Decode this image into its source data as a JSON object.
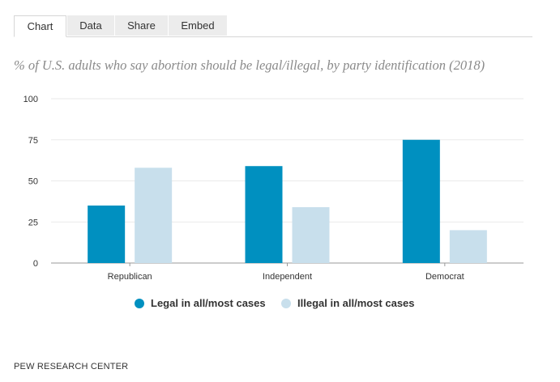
{
  "tabs": [
    "Chart",
    "Data",
    "Share",
    "Embed"
  ],
  "active_tab": "Chart",
  "colors": {
    "legal": "#0090c0",
    "illegal": "#c8dfec",
    "grid": "#eaeaea",
    "axis": "#999999"
  },
  "chart_data": {
    "type": "bar",
    "title": "% of U.S. adults who say abortion should be legal/illegal, by party identification (2018)",
    "categories": [
      "Republican",
      "Independent",
      "Democrat"
    ],
    "series": [
      {
        "name": "Legal in all/most cases",
        "values": [
          35,
          59,
          75
        ]
      },
      {
        "name": "Illegal in all/most cases",
        "values": [
          58,
          34,
          20
        ]
      }
    ],
    "yticks": [
      0,
      25,
      50,
      75,
      100
    ],
    "ylim": [
      0,
      100
    ],
    "xlabel": "",
    "ylabel": "",
    "grid": true,
    "legend": "bottom-center"
  },
  "source": "PEW RESEARCH CENTER"
}
